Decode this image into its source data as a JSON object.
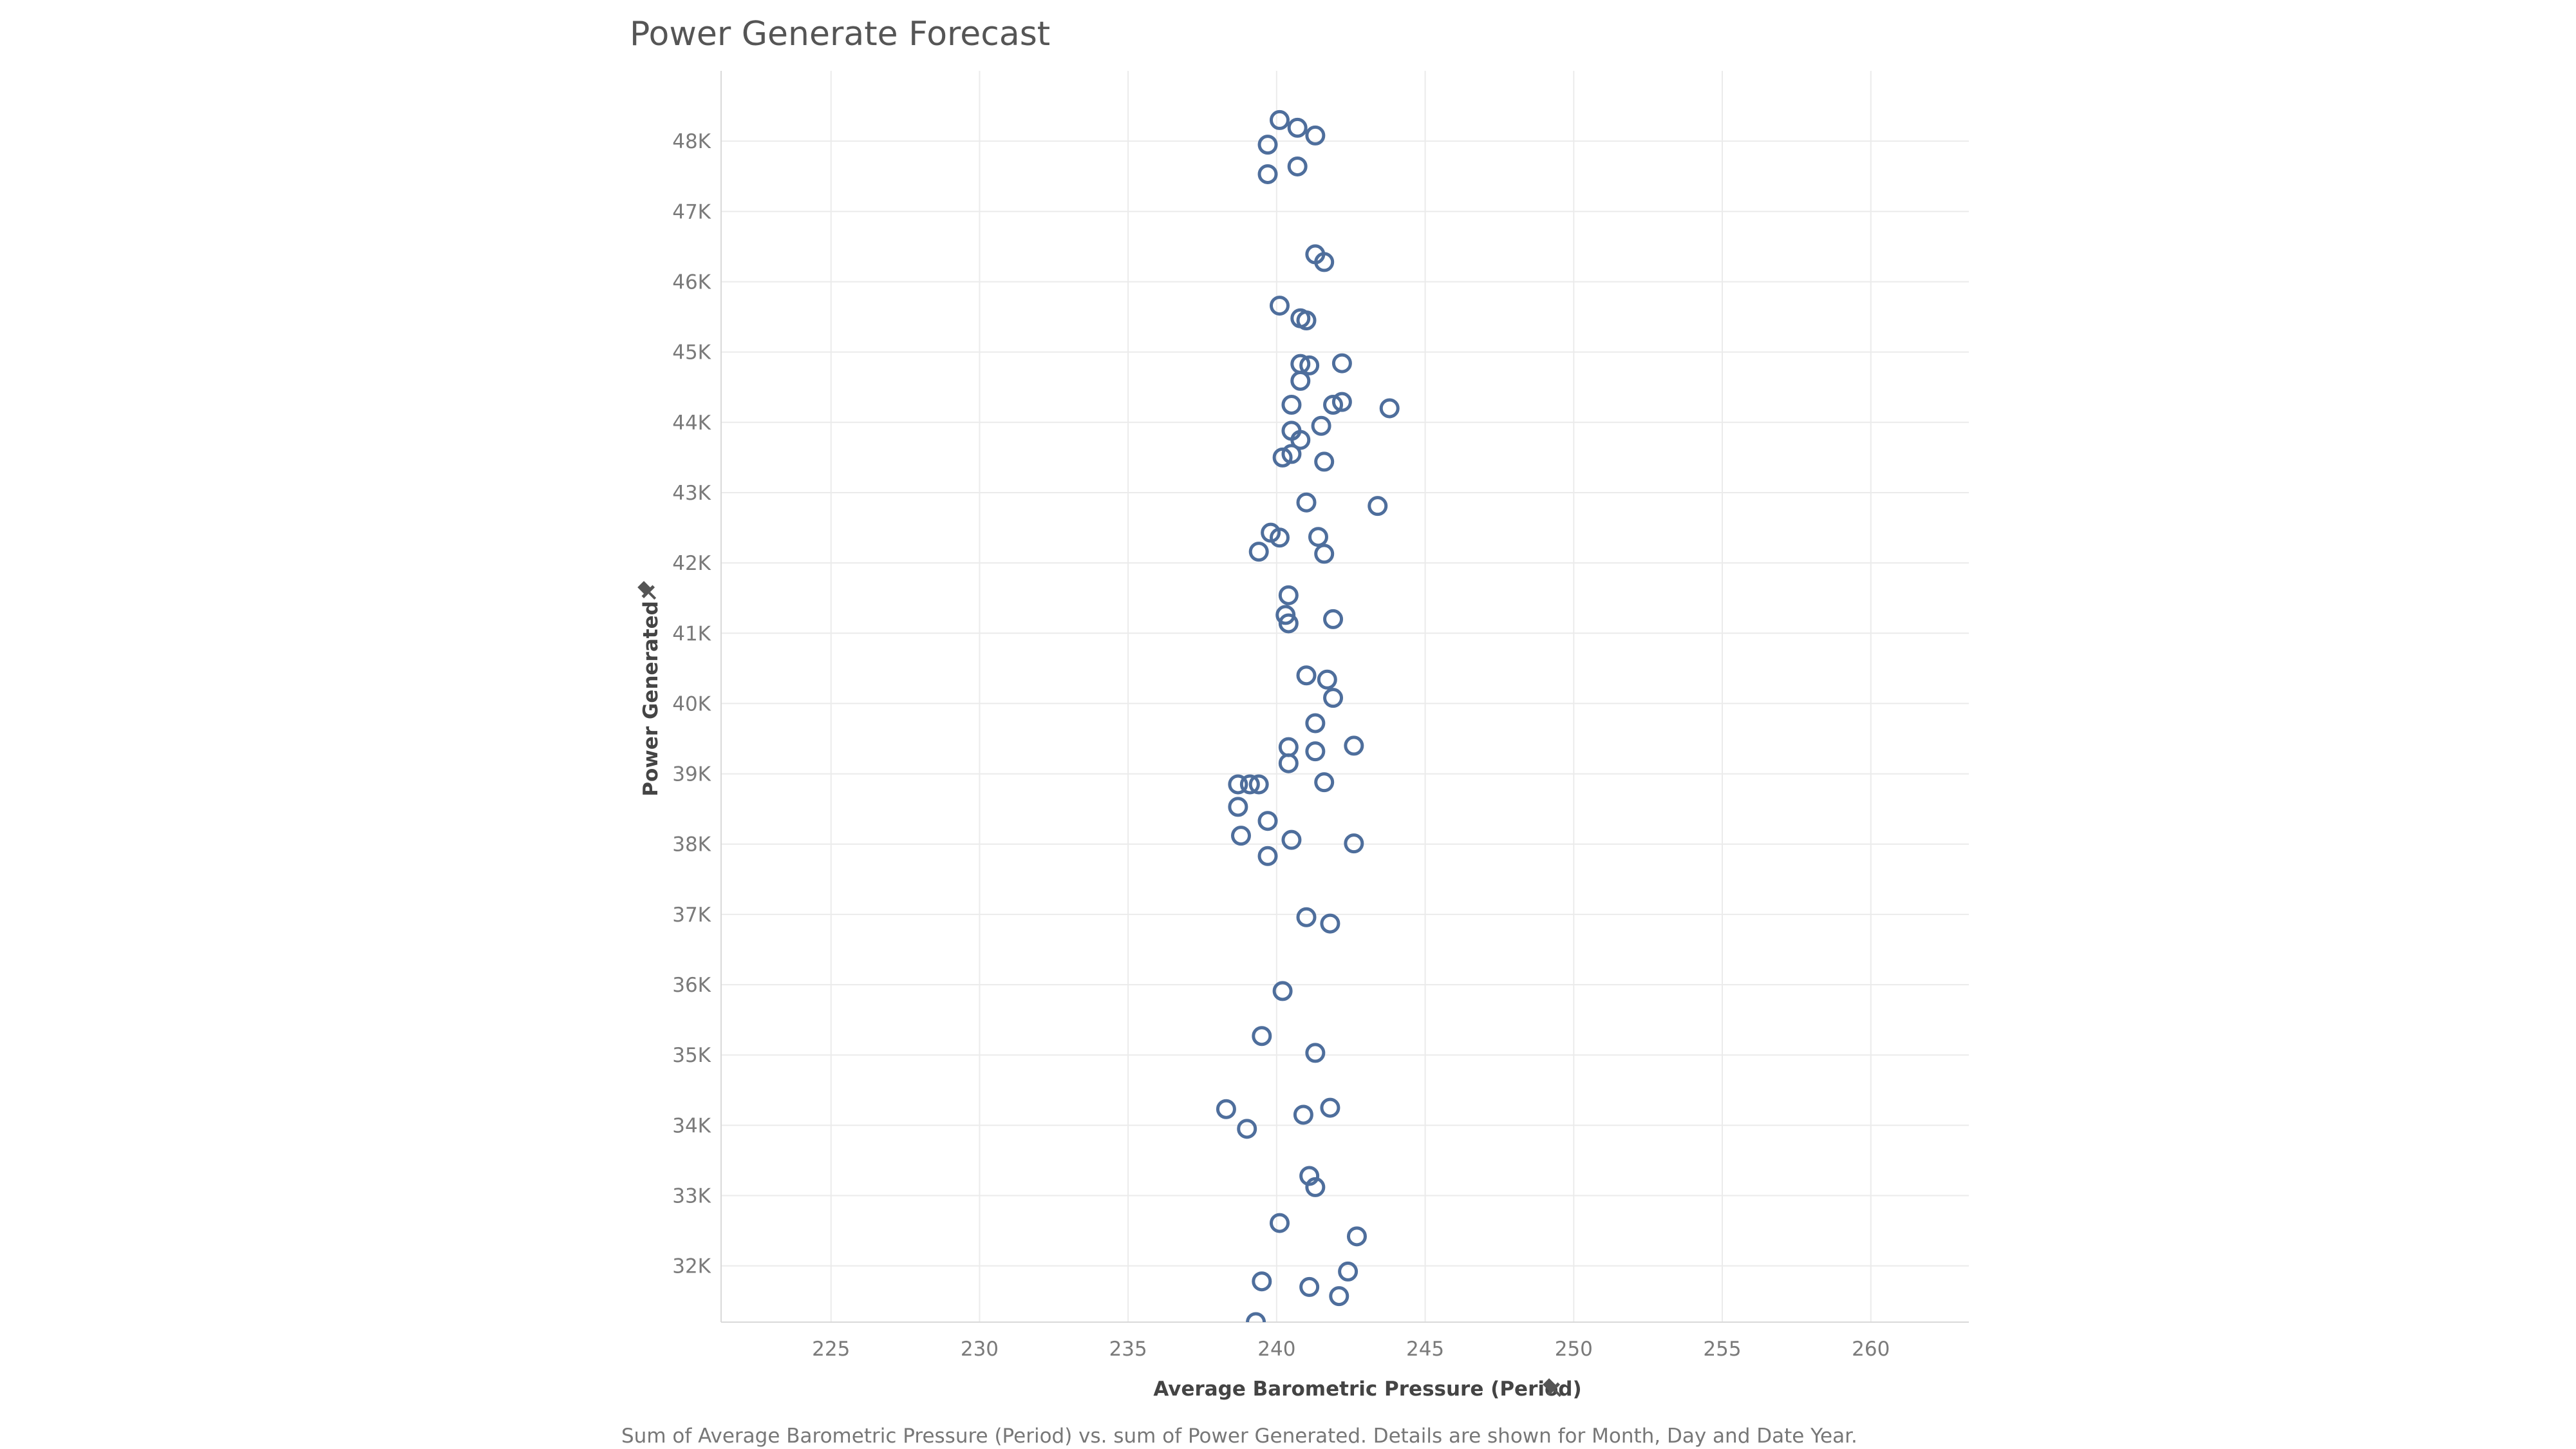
{
  "chart_data": {
    "type": "scatter",
    "title": "Power Generate Forecast",
    "xlabel": "Average Barometric Pressure (Period)",
    "ylabel": "Power Generated",
    "caption": "Sum of Average Barometric Pressure (Period) vs. sum of Power Generated.  Details are shown for Month, Day and Date Year.",
    "xlim": [
      221.3,
      263.3
    ],
    "ylim": [
      31200,
      49000
    ],
    "x_ticks": [
      "225",
      "230",
      "235",
      "240",
      "245",
      "250",
      "255",
      "260"
    ],
    "y_ticks": [
      "32K",
      "33K",
      "34K",
      "35K",
      "36K",
      "37K",
      "38K",
      "39K",
      "40K",
      "41K",
      "42K",
      "43K",
      "44K",
      "45K",
      "46K",
      "47K",
      "48K"
    ],
    "grid": true,
    "marker": "hollow-circle",
    "colors": {
      "points": "#4e6e9c",
      "grid": "#ebebeb"
    },
    "series": [
      {
        "points": [
          {
            "x": 240.1,
            "y": 48300
          },
          {
            "x": 240.7,
            "y": 48190
          },
          {
            "x": 241.3,
            "y": 48080
          },
          {
            "x": 239.7,
            "y": 47950
          },
          {
            "x": 240.7,
            "y": 47640
          },
          {
            "x": 239.7,
            "y": 47530
          },
          {
            "x": 241.3,
            "y": 46390
          },
          {
            "x": 241.6,
            "y": 46280
          },
          {
            "x": 240.1,
            "y": 45660
          },
          {
            "x": 240.8,
            "y": 45480
          },
          {
            "x": 241.0,
            "y": 45450
          },
          {
            "x": 240.8,
            "y": 44830
          },
          {
            "x": 241.1,
            "y": 44810
          },
          {
            "x": 242.2,
            "y": 44840
          },
          {
            "x": 240.8,
            "y": 44590
          },
          {
            "x": 240.5,
            "y": 44250
          },
          {
            "x": 241.9,
            "y": 44250
          },
          {
            "x": 242.2,
            "y": 44290
          },
          {
            "x": 243.8,
            "y": 44200
          },
          {
            "x": 240.5,
            "y": 43880
          },
          {
            "x": 241.5,
            "y": 43950
          },
          {
            "x": 240.8,
            "y": 43750
          },
          {
            "x": 240.2,
            "y": 43500
          },
          {
            "x": 240.5,
            "y": 43550
          },
          {
            "x": 241.6,
            "y": 43440
          },
          {
            "x": 241.0,
            "y": 42860
          },
          {
            "x": 243.4,
            "y": 42810
          },
          {
            "x": 239.8,
            "y": 42430
          },
          {
            "x": 240.1,
            "y": 42360
          },
          {
            "x": 241.4,
            "y": 42370
          },
          {
            "x": 239.4,
            "y": 42160
          },
          {
            "x": 241.6,
            "y": 42130
          },
          {
            "x": 240.4,
            "y": 41540
          },
          {
            "x": 240.3,
            "y": 41260
          },
          {
            "x": 240.4,
            "y": 41140
          },
          {
            "x": 241.9,
            "y": 41200
          },
          {
            "x": 241.0,
            "y": 40400
          },
          {
            "x": 241.7,
            "y": 40340
          },
          {
            "x": 241.9,
            "y": 40080
          },
          {
            "x": 241.3,
            "y": 39720
          },
          {
            "x": 240.4,
            "y": 39380
          },
          {
            "x": 241.3,
            "y": 39320
          },
          {
            "x": 242.6,
            "y": 39400
          },
          {
            "x": 240.4,
            "y": 39150
          },
          {
            "x": 238.7,
            "y": 38850
          },
          {
            "x": 239.1,
            "y": 38850
          },
          {
            "x": 239.4,
            "y": 38850
          },
          {
            "x": 241.6,
            "y": 38880
          },
          {
            "x": 238.7,
            "y": 38530
          },
          {
            "x": 239.7,
            "y": 38330
          },
          {
            "x": 238.8,
            "y": 38120
          },
          {
            "x": 240.5,
            "y": 38060
          },
          {
            "x": 242.6,
            "y": 38010
          },
          {
            "x": 239.7,
            "y": 37830
          },
          {
            "x": 241.0,
            "y": 36960
          },
          {
            "x": 241.8,
            "y": 36870
          },
          {
            "x": 240.2,
            "y": 35910
          },
          {
            "x": 239.5,
            "y": 35270
          },
          {
            "x": 241.3,
            "y": 35030
          },
          {
            "x": 238.3,
            "y": 34230
          },
          {
            "x": 240.9,
            "y": 34150
          },
          {
            "x": 241.8,
            "y": 34250
          },
          {
            "x": 239.0,
            "y": 33950
          },
          {
            "x": 241.1,
            "y": 33280
          },
          {
            "x": 241.3,
            "y": 33120
          },
          {
            "x": 240.1,
            "y": 32610
          },
          {
            "x": 242.7,
            "y": 32420
          },
          {
            "x": 242.4,
            "y": 31920
          },
          {
            "x": 239.5,
            "y": 31780
          },
          {
            "x": 241.1,
            "y": 31700
          },
          {
            "x": 242.1,
            "y": 31570
          },
          {
            "x": 239.3,
            "y": 31200
          }
        ]
      }
    ]
  }
}
